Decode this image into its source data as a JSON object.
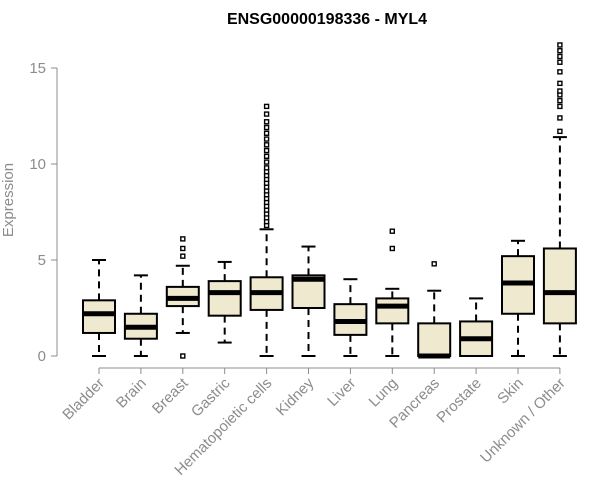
{
  "chart_data": {
    "type": "boxplot",
    "title": "ENSG00000198336 - MYL4",
    "xlabel": "",
    "ylabel": "Expression",
    "ylim": [
      0,
      16.3
    ],
    "yticks": [
      0,
      5,
      10,
      15
    ],
    "grid": false,
    "legend": "none",
    "box_fill": "#efe9cf",
    "categories": [
      "Bladder",
      "Brain",
      "Breast",
      "Gastric",
      "Hematopoietic cells",
      "Kidney",
      "Liver",
      "Lung",
      "Pancreas",
      "Prostate",
      "Skin",
      "Unknown / Other"
    ],
    "boxes": [
      {
        "category": "Bladder",
        "min": 0.0,
        "q1": 1.2,
        "median": 2.2,
        "q3": 2.9,
        "max": 5.0,
        "outliers": []
      },
      {
        "category": "Brain",
        "min": 0.0,
        "q1": 0.9,
        "median": 1.5,
        "q3": 2.2,
        "max": 4.2,
        "outliers": []
      },
      {
        "category": "Breast",
        "min": 1.2,
        "q1": 2.6,
        "median": 3.0,
        "q3": 3.6,
        "max": 4.7,
        "outliers": [
          0.0,
          5.2,
          5.6,
          6.1
        ]
      },
      {
        "category": "Gastric",
        "min": 0.7,
        "q1": 2.1,
        "median": 3.3,
        "q3": 3.9,
        "max": 4.9,
        "outliers": []
      },
      {
        "category": "Hematopoietic cells",
        "min": 0.0,
        "q1": 2.4,
        "median": 3.3,
        "q3": 4.1,
        "max": 6.6,
        "outliers": [
          6.8,
          7.0,
          7.2,
          7.4,
          7.6,
          7.8,
          8.0,
          8.2,
          8.4,
          8.6,
          8.8,
          9.0,
          9.2,
          9.4,
          9.6,
          9.8,
          10.1,
          10.4,
          10.7,
          11.0,
          11.3,
          11.6,
          11.9,
          12.2,
          12.6,
          13.0
        ]
      },
      {
        "category": "Kidney",
        "min": 0.0,
        "q1": 2.5,
        "median": 4.0,
        "q3": 4.2,
        "max": 5.7,
        "outliers": []
      },
      {
        "category": "Liver",
        "min": 0.0,
        "q1": 1.1,
        "median": 1.8,
        "q3": 2.7,
        "max": 4.0,
        "outliers": []
      },
      {
        "category": "Lung",
        "min": 0.0,
        "q1": 1.7,
        "median": 2.6,
        "q3": 3.0,
        "max": 3.5,
        "outliers": [
          5.6,
          6.5
        ]
      },
      {
        "category": "Pancreas",
        "min": 0.0,
        "q1": 0.0,
        "median": 0.0,
        "q3": 1.7,
        "max": 3.4,
        "outliers": [
          4.8
        ]
      },
      {
        "category": "Prostate",
        "min": 0.0,
        "q1": 0.0,
        "median": 0.9,
        "q3": 1.8,
        "max": 3.0,
        "outliers": []
      },
      {
        "category": "Skin",
        "min": 0.0,
        "q1": 2.2,
        "median": 3.8,
        "q3": 5.2,
        "max": 6.0,
        "outliers": []
      },
      {
        "category": "Unknown / Other",
        "min": 0.0,
        "q1": 1.7,
        "median": 3.3,
        "q3": 5.6,
        "max": 11.4,
        "outliers": [
          11.7,
          12.4,
          13.0,
          13.3,
          13.6,
          13.8,
          14.2,
          14.8,
          15.3,
          15.6,
          15.9,
          16.2
        ]
      }
    ]
  }
}
